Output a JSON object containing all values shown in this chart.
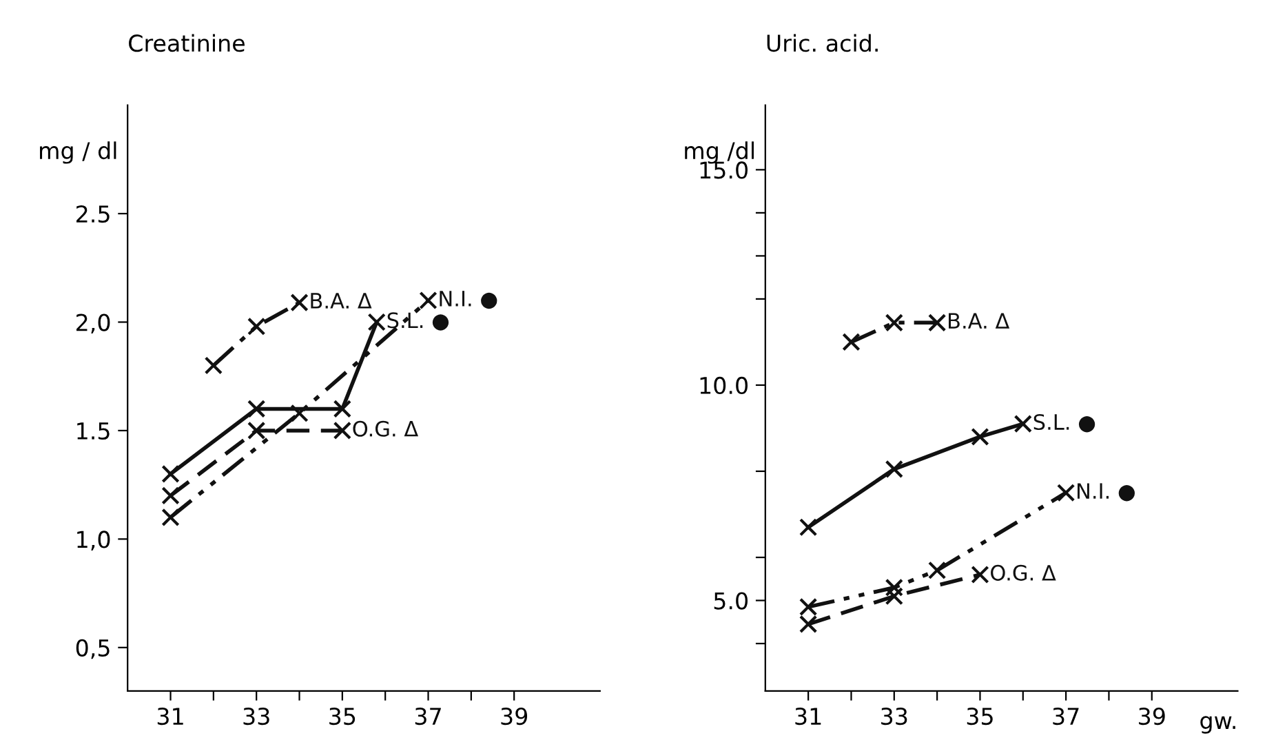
{
  "chart_data": [
    {
      "type": "line",
      "title": "Creatinine",
      "ylabel": "mg / dl",
      "marker": "cross",
      "legend": false,
      "grid": false,
      "xlim": [
        30,
        41
      ],
      "ylim": [
        0.3,
        3.0
      ],
      "xticks": [
        31,
        {
          "value": 32,
          "label": null
        },
        33,
        {
          "value": 34,
          "label": null
        },
        35,
        {
          "value": 36,
          "label": null
        },
        37,
        {
          "value": 38,
          "label": null
        },
        39
      ],
      "yticks": [
        {
          "value": 0.5,
          "label": "0,5"
        },
        {
          "value": 1.0,
          "label": "1,0"
        },
        1.5,
        {
          "value": 2.0,
          "label": "2,0"
        },
        2.5
      ],
      "series": [
        {
          "name": "B.A. Δ",
          "color": "#111111",
          "line_style": "dashdot",
          "x": [
            32,
            33,
            34
          ],
          "values": [
            1.8,
            1.98,
            2.09
          ]
        },
        {
          "name": "N.I. ●",
          "color": "#111111",
          "line_style": "dashdot",
          "x": [
            31,
            34,
            37
          ],
          "values": [
            1.1,
            1.58,
            2.1
          ]
        },
        {
          "name": "S.L. ●",
          "color": "#111111",
          "line_style": "solid",
          "x": [
            31,
            33,
            35,
            35.8
          ],
          "values": [
            1.3,
            1.6,
            1.6,
            2.0
          ]
        },
        {
          "name": "O.G. Δ",
          "color": "#111111",
          "line_style": "dashed",
          "x": [
            31,
            33,
            35
          ],
          "values": [
            1.2,
            1.5,
            1.5
          ]
        }
      ]
    },
    {
      "type": "line",
      "title": "Uric. acid.",
      "ylabel": "mg /dl",
      "xlabel": "gw.",
      "marker": "cross",
      "legend": false,
      "grid": false,
      "xlim": [
        30,
        41
      ],
      "ylim": [
        2.9,
        16.5
      ],
      "xticks": [
        31,
        {
          "value": 32,
          "label": null
        },
        33,
        {
          "value": 34,
          "label": null
        },
        35,
        {
          "value": 36,
          "label": null
        },
        37,
        {
          "value": 38,
          "label": null
        },
        39
      ],
      "yticks": [
        {
          "value": 4,
          "label": null
        },
        {
          "value": 5,
          "label": "5.0"
        },
        {
          "value": 6,
          "label": null
        },
        {
          "value": 8,
          "label": null
        },
        {
          "value": 10,
          "label": "10.0"
        },
        {
          "value": 12,
          "label": null
        },
        {
          "value": 13,
          "label": null
        },
        {
          "value": 14,
          "label": null
        },
        {
          "value": 15,
          "label": "15.0"
        }
      ],
      "series": [
        {
          "name": "B.A. Δ",
          "color": "#111111",
          "line_style": "dashdot",
          "x": [
            32,
            33,
            34
          ],
          "values": [
            11.0,
            11.45,
            11.45
          ]
        },
        {
          "name": "S.L. ●",
          "color": "#111111",
          "line_style": "solid",
          "x": [
            31,
            33,
            35,
            36
          ],
          "values": [
            6.7,
            8.05,
            8.8,
            9.1
          ]
        },
        {
          "name": "N.I. ●",
          "color": "#111111",
          "line_style": "dashdot",
          "x": [
            31,
            33,
            34,
            37
          ],
          "values": [
            4.85,
            5.3,
            5.7,
            7.5
          ]
        },
        {
          "name": "O.G. Δ",
          "color": "#111111",
          "line_style": "dashed",
          "x": [
            31,
            33,
            35
          ],
          "values": [
            4.45,
            5.1,
            5.6
          ]
        }
      ]
    }
  ]
}
